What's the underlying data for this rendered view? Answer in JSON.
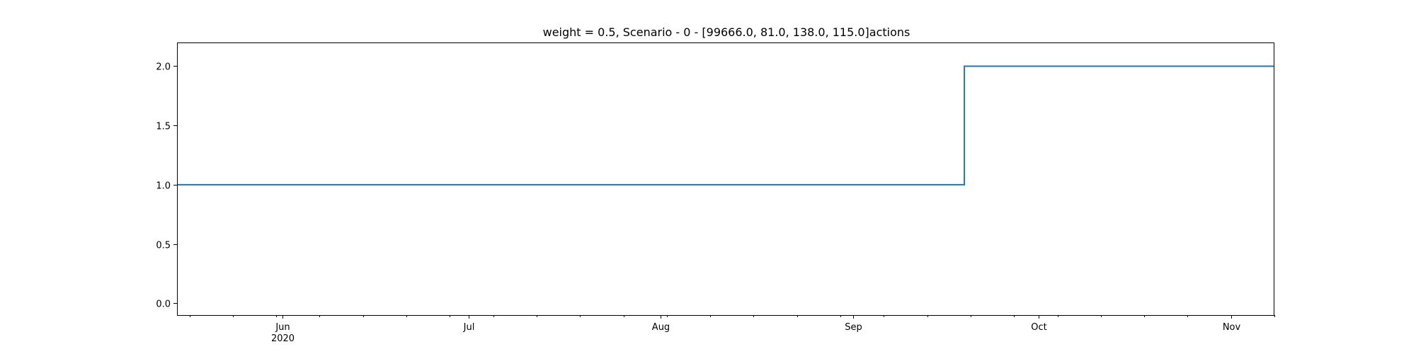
{
  "chart_data": {
    "type": "line",
    "drawstyle": "steps-post",
    "title": "weight = 0.5, Scenario - 0 - [99666.0, 81.0, 138.0, 115.0]actions",
    "xlabel": "",
    "ylabel": "",
    "x_type": "date",
    "xlim": [
      "2020-05-15",
      "2020-11-08"
    ],
    "ylim": [
      -0.1,
      2.2
    ],
    "x_major_ticks": [
      {
        "date": "2020-06-01",
        "label": "Jun",
        "sublabel": "2020"
      },
      {
        "date": "2020-07-01",
        "label": "Jul",
        "sublabel": ""
      },
      {
        "date": "2020-08-01",
        "label": "Aug",
        "sublabel": ""
      },
      {
        "date": "2020-09-01",
        "label": "Sep",
        "sublabel": ""
      },
      {
        "date": "2020-10-01",
        "label": "Oct",
        "sublabel": ""
      },
      {
        "date": "2020-11-01",
        "label": "Nov",
        "sublabel": ""
      }
    ],
    "y_ticks": [
      {
        "value": 0.0,
        "label": "0.0"
      },
      {
        "value": 0.5,
        "label": "0.5"
      },
      {
        "value": 1.0,
        "label": "1.0"
      },
      {
        "value": 1.5,
        "label": "1.5"
      },
      {
        "value": 2.0,
        "label": "2.0"
      }
    ],
    "series": [
      {
        "color": "#1f77b4",
        "points": [
          {
            "x": "2020-05-15",
            "y": 1.0
          },
          {
            "x": "2020-09-19",
            "y": 2.0
          },
          {
            "x": "2020-11-08",
            "y": 2.0
          }
        ]
      }
    ],
    "grid": false,
    "legend": "none"
  }
}
